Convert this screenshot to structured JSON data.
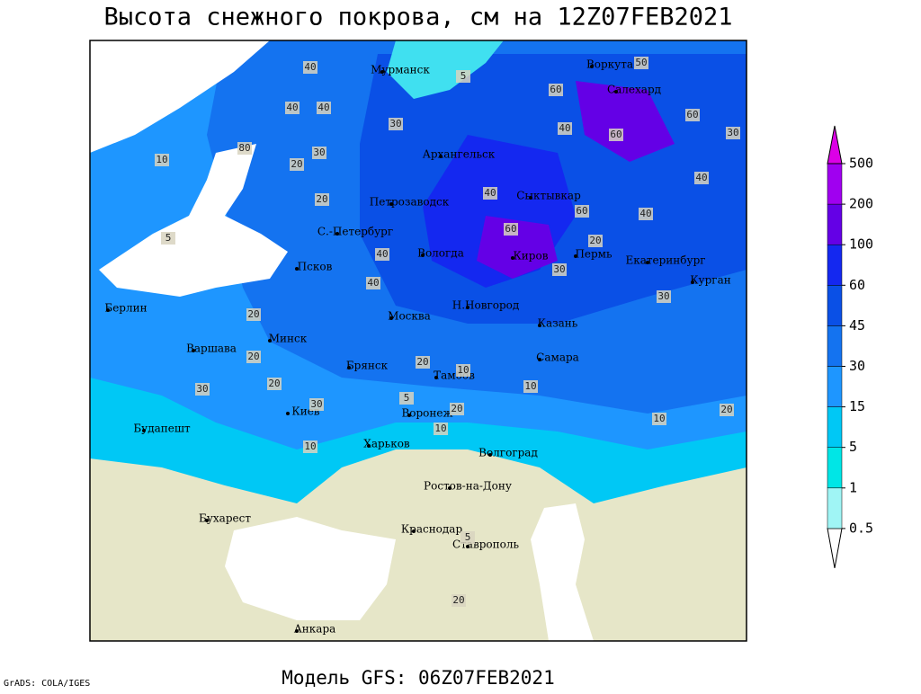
{
  "title": "Высота снежного покрова, см на 12Z07FEB2021",
  "footer": {
    "credit": "GrADS: COLA/IGES",
    "model": "Модель GFS: 06Z07FEB2021"
  },
  "colorbar": {
    "levels": [
      0.5,
      1,
      5,
      15,
      30,
      45,
      60,
      100,
      200,
      500
    ],
    "colors": [
      "#ffffff",
      "#a0f5f5",
      "#00e6e6",
      "#00c8f5",
      "#1e96ff",
      "#1473f0",
      "#0a50e6",
      "#1428f0",
      "#6400e6",
      "#a000f0",
      "#dc00e6"
    ]
  },
  "cities": [
    "Мурманск",
    "Воркута",
    "Салехард",
    "Архангельск",
    "Петрозаводск",
    "Сыктывкар",
    "С.-Петербург",
    "Вологда",
    "Киров",
    "Пермь",
    "Екатеринбург",
    "Курган",
    "Псков",
    "Н.Новгород",
    "Казань",
    "Москва",
    "Берлин",
    "Минск",
    "Варшава",
    "Брянск",
    "Тамбов",
    "Самара",
    "Киев",
    "Воронеж",
    "Будапешт",
    "Харьков",
    "Волгоград",
    "Ростов-на-Дону",
    "Бухарест",
    "Краснодар",
    "Ставрополь",
    "Анкара"
  ],
  "contour_labels": [
    40,
    5,
    60,
    50,
    60,
    30,
    40,
    60,
    30,
    40,
    20,
    30,
    80,
    40,
    40,
    20,
    60,
    20,
    40,
    60,
    40,
    30,
    40,
    20,
    40,
    10,
    5,
    20,
    20,
    30,
    30,
    20,
    5,
    10,
    10,
    20,
    10,
    10,
    20,
    5,
    20,
    30,
    10
  ]
}
